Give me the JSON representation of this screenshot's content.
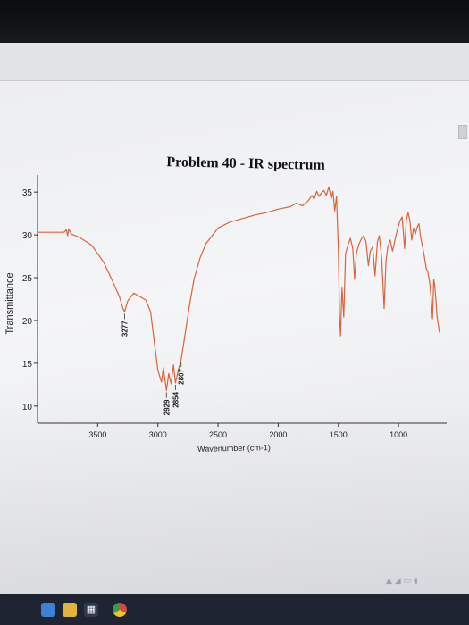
{
  "chart_data": {
    "type": "line",
    "title": "Problem 40 - IR spectrum",
    "xlabel": "Wavenumber (cm-1)",
    "ylabel": "Transmittance",
    "xlim": [
      4000,
      600
    ],
    "ylim": [
      8,
      37
    ],
    "x_ticks": [
      3500,
      3000,
      2500,
      2000,
      1500,
      1000
    ],
    "y_ticks": [
      10,
      15,
      20,
      25,
      30,
      35
    ],
    "line_color": "#d9633f",
    "series": [
      {
        "values": [
          [
            4000,
            30.3
          ],
          [
            3780,
            30.3
          ],
          [
            3760,
            30.6
          ],
          [
            3750,
            29.9
          ],
          [
            3740,
            30.7
          ],
          [
            3720,
            30.1
          ],
          [
            3650,
            29.7
          ],
          [
            3550,
            28.8
          ],
          [
            3450,
            26.8
          ],
          [
            3380,
            24.7
          ],
          [
            3320,
            22.8
          ],
          [
            3290,
            21.4
          ],
          [
            3277,
            21.0
          ],
          [
            3250,
            22.3
          ],
          [
            3200,
            23.2
          ],
          [
            3150,
            22.8
          ],
          [
            3100,
            22.4
          ],
          [
            3060,
            21.0
          ],
          [
            3030,
            17.5
          ],
          [
            3000,
            14.2
          ],
          [
            2970,
            12.8
          ],
          [
            2955,
            14.5
          ],
          [
            2940,
            13.0
          ],
          [
            2929,
            11.8
          ],
          [
            2910,
            13.8
          ],
          [
            2890,
            12.6
          ],
          [
            2870,
            14.8
          ],
          [
            2854,
            12.7
          ],
          [
            2830,
            14.2
          ],
          [
            2807,
            15.4
          ],
          [
            2780,
            17.8
          ],
          [
            2740,
            21.5
          ],
          [
            2700,
            24.8
          ],
          [
            2650,
            27.3
          ],
          [
            2600,
            29.0
          ],
          [
            2500,
            30.8
          ],
          [
            2400,
            31.5
          ],
          [
            2300,
            31.9
          ],
          [
            2200,
            32.3
          ],
          [
            2100,
            32.6
          ],
          [
            2000,
            33.0
          ],
          [
            1900,
            33.3
          ],
          [
            1850,
            33.7
          ],
          [
            1800,
            33.4
          ],
          [
            1750,
            34.0
          ],
          [
            1720,
            34.6
          ],
          [
            1700,
            34.2
          ],
          [
            1680,
            35.1
          ],
          [
            1660,
            34.5
          ],
          [
            1640,
            34.9
          ],
          [
            1620,
            35.2
          ],
          [
            1600,
            34.6
          ],
          [
            1580,
            35.6
          ],
          [
            1560,
            34.2
          ],
          [
            1545,
            35.1
          ],
          [
            1530,
            32.8
          ],
          [
            1515,
            34.5
          ],
          [
            1500,
            28.0
          ],
          [
            1490,
            20.5
          ],
          [
            1482,
            18.2
          ],
          [
            1470,
            23.8
          ],
          [
            1455,
            20.4
          ],
          [
            1440,
            27.8
          ],
          [
            1420,
            28.8
          ],
          [
            1400,
            29.6
          ],
          [
            1380,
            28.4
          ],
          [
            1365,
            24.8
          ],
          [
            1350,
            27.9
          ],
          [
            1330,
            28.9
          ],
          [
            1310,
            29.5
          ],
          [
            1290,
            29.9
          ],
          [
            1270,
            29.2
          ],
          [
            1250,
            26.4
          ],
          [
            1235,
            28.1
          ],
          [
            1215,
            28.6
          ],
          [
            1195,
            25.2
          ],
          [
            1175,
            29.2
          ],
          [
            1160,
            29.9
          ],
          [
            1140,
            27.2
          ],
          [
            1120,
            21.4
          ],
          [
            1105,
            26.8
          ],
          [
            1090,
            28.6
          ],
          [
            1070,
            29.4
          ],
          [
            1050,
            28.1
          ],
          [
            1030,
            29.4
          ],
          [
            1010,
            30.6
          ],
          [
            990,
            31.6
          ],
          [
            970,
            32.1
          ],
          [
            950,
            28.4
          ],
          [
            935,
            31.8
          ],
          [
            920,
            32.6
          ],
          [
            905,
            31.6
          ],
          [
            890,
            29.4
          ],
          [
            875,
            30.8
          ],
          [
            860,
            30.1
          ],
          [
            845,
            30.9
          ],
          [
            830,
            31.3
          ],
          [
            815,
            29.6
          ],
          [
            800,
            28.6
          ],
          [
            785,
            27.4
          ],
          [
            770,
            26.1
          ],
          [
            755,
            25.6
          ],
          [
            740,
            24.3
          ],
          [
            728,
            22.4
          ],
          [
            718,
            20.2
          ],
          [
            708,
            24.8
          ],
          [
            700,
            24.2
          ],
          [
            690,
            22.5
          ],
          [
            680,
            20.5
          ],
          [
            670,
            19.5
          ],
          [
            660,
            18.6
          ]
        ]
      }
    ],
    "annotations": [
      {
        "label": "3277",
        "x": 3277,
        "y": 21.0
      },
      {
        "label": "2929",
        "x": 2929,
        "y": 11.8
      },
      {
        "label": "2854",
        "x": 2854,
        "y": 12.7
      },
      {
        "label": "2807",
        "x": 2807,
        "y": 15.4
      }
    ]
  }
}
